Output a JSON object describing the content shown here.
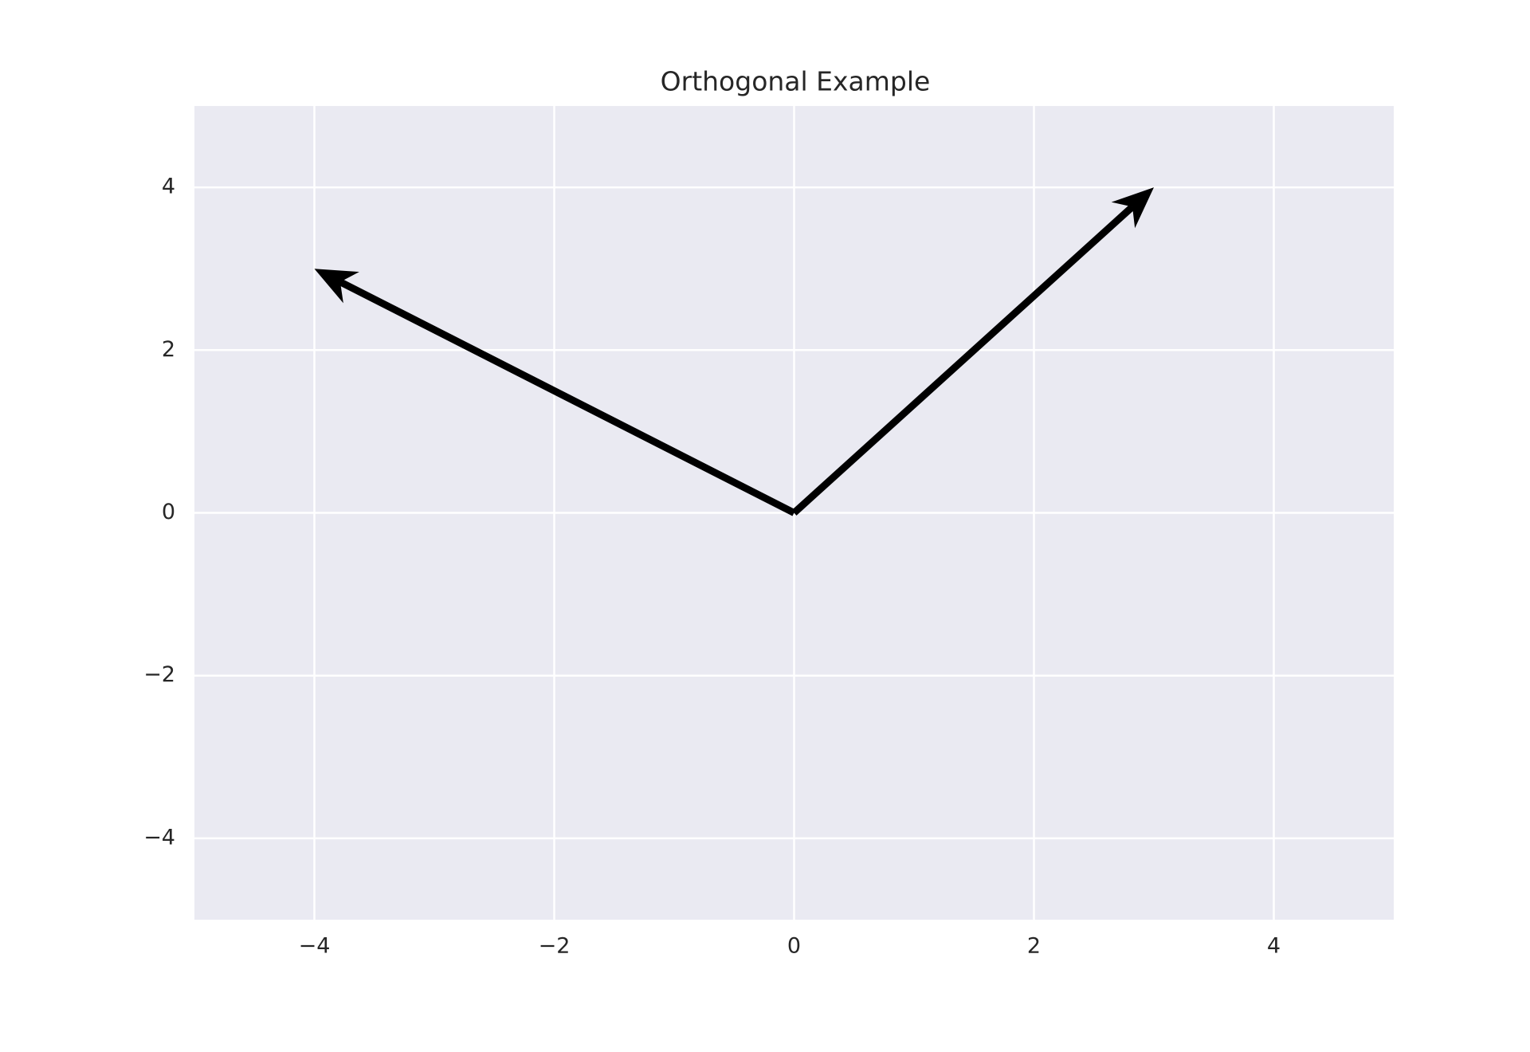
{
  "chart_data": {
    "type": "quiver",
    "title": "Orthogonal Example",
    "x": [
      0,
      0
    ],
    "y": [
      0,
      0
    ],
    "u": [
      -4,
      3
    ],
    "v": [
      3,
      4
    ],
    "color": "#000000",
    "xlim": [
      -5,
      5
    ],
    "ylim": [
      -5,
      5
    ],
    "xticks": [
      {
        "value": -4,
        "label": "−4"
      },
      {
        "value": -2,
        "label": "−2"
      },
      0,
      2,
      4
    ],
    "yticks": [
      {
        "value": -4,
        "label": "−4"
      },
      {
        "value": -2,
        "label": "−2"
      },
      0,
      2,
      4
    ],
    "grid": true
  }
}
